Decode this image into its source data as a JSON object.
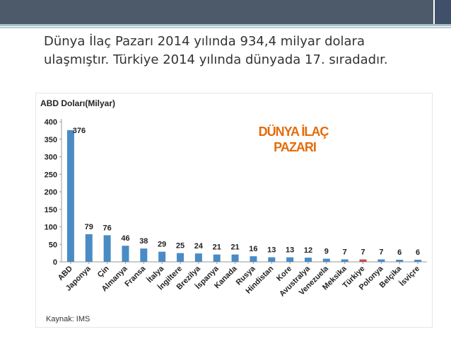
{
  "slide": {
    "subtitle_line1": "Dünya İlaç Pazarı 2014 yılında 934,4 milyar dolara",
    "subtitle_line2": "ulaşmıştır. Türkiye 2014 yılında dünyada 17. sıradadır."
  },
  "colors": {
    "bar": "#4a8bc5",
    "highlight_bar": "#c0504d",
    "callout": "#e46c0a",
    "header": "#4d5a69"
  },
  "chart_data": {
    "type": "bar",
    "title": "DÜNYA İLAÇ PAZARI",
    "ylabel": "ABD Doları(Milyar)",
    "xlabel": "",
    "ylim": [
      0,
      400
    ],
    "yticks": [
      0,
      50,
      100,
      150,
      200,
      250,
      300,
      350,
      400
    ],
    "categories": [
      "ABD",
      "Japonya",
      "Çin",
      "Almanya",
      "Fransa",
      "İtalya",
      "İngiltere",
      "Brezilya",
      "İspanya",
      "Kanada",
      "Rusya",
      "Hindistan",
      "Kore",
      "Avustralya",
      "Venezuela",
      "Meksika",
      "Türkiye",
      "Polonya",
      "Belçika",
      "İsviçre"
    ],
    "values": [
      376,
      79,
      76,
      46,
      38,
      29,
      25,
      24,
      21,
      21,
      16,
      13,
      13,
      12,
      9,
      7,
      7,
      7,
      6,
      6
    ],
    "highlight": "Türkiye",
    "grid": false,
    "source": "Kaynak: IMS"
  }
}
